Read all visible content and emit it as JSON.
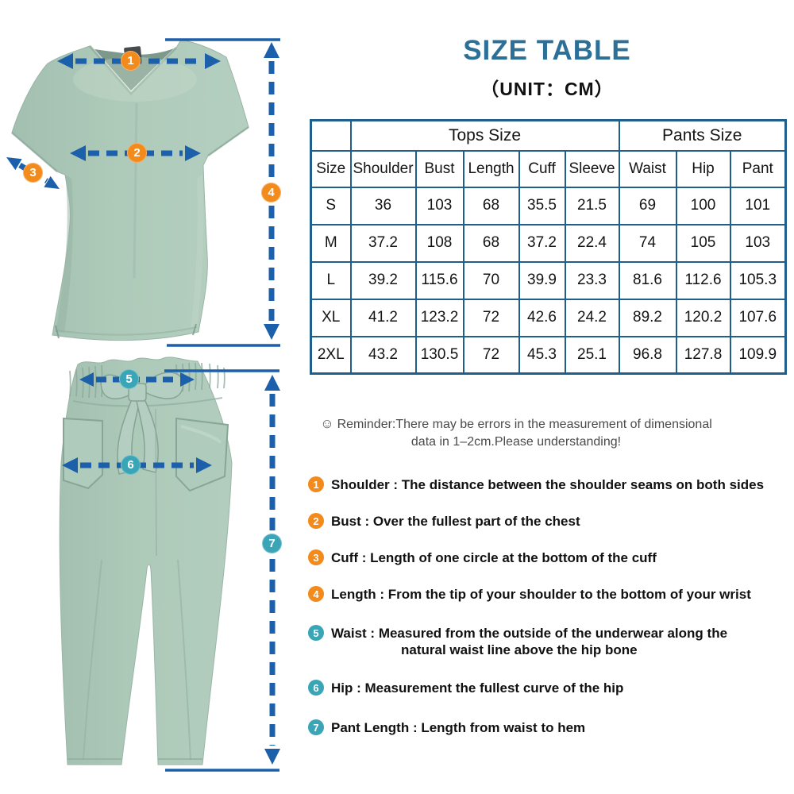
{
  "title": "SIZE TABLE",
  "unit_label": "（UNIT：CM）",
  "table": {
    "group_headers": {
      "tops": "Tops Size",
      "pants": "Pants Size"
    },
    "columns": [
      "Size",
      "Shoulder",
      "Bust",
      "Length",
      "Cuff",
      "Sleeve",
      "Waist",
      "Hip",
      "Pant"
    ],
    "rows": [
      {
        "size": "S",
        "values": [
          "36",
          "103",
          "68",
          "35.5",
          "21.5",
          "69",
          "100",
          "101"
        ]
      },
      {
        "size": "M",
        "values": [
          "37.2",
          "108",
          "68",
          "37.2",
          "22.4",
          "74",
          "105",
          "103"
        ]
      },
      {
        "size": "L",
        "values": [
          "39.2",
          "115.6",
          "70",
          "39.9",
          "23.3",
          "81.6",
          "112.6",
          "105.3"
        ]
      },
      {
        "size": "XL",
        "values": [
          "41.2",
          "123.2",
          "72",
          "42.6",
          "24.2",
          "89.2",
          "120.2",
          "107.6"
        ]
      },
      {
        "size": "2XL",
        "values": [
          "43.2",
          "130.5",
          "72",
          "45.3",
          "25.1",
          "96.8",
          "127.8",
          "109.9"
        ]
      }
    ]
  },
  "reminder": {
    "icon": "☺",
    "line1": "Reminder:There may be errors in the measurement of dimensional",
    "line2": "data in 1–2cm.Please understanding!"
  },
  "definitions": [
    {
      "num": "1",
      "color": "orange",
      "term": "Shoulder",
      "text": "The distance between the shoulder seams on both sides"
    },
    {
      "num": "2",
      "color": "orange",
      "term": "Bust",
      "text": "Over the fullest part of the chest"
    },
    {
      "num": "3",
      "color": "orange",
      "term": "Cuff",
      "text": "Length of one circle at the bottom of the cuff"
    },
    {
      "num": "4",
      "color": "orange",
      "term": "Length",
      "text": "From the tip of your shoulder to the bottom of your wrist"
    },
    {
      "num": "5",
      "color": "teal",
      "term": "Waist",
      "text": "Measured from the outside of the underwear along the\nnatural waist line above the hip bone"
    },
    {
      "num": "6",
      "color": "teal",
      "term": "Hip",
      "text": "Measurement the fullest curve of the hip"
    },
    {
      "num": "7",
      "color": "teal",
      "term": "Pant Length",
      "text": "Length from waist to hem"
    }
  ],
  "figure_badges": [
    "1",
    "2",
    "3",
    "4",
    "5",
    "6",
    "7"
  ],
  "colors": {
    "title_blue": "#2c6f97",
    "table_border": "#205e8c",
    "arrow_blue": "#1c5fab",
    "badge_orange": "#f28a1c",
    "badge_teal": "#3aa5b6",
    "garment_green": "#a9c5b6"
  }
}
